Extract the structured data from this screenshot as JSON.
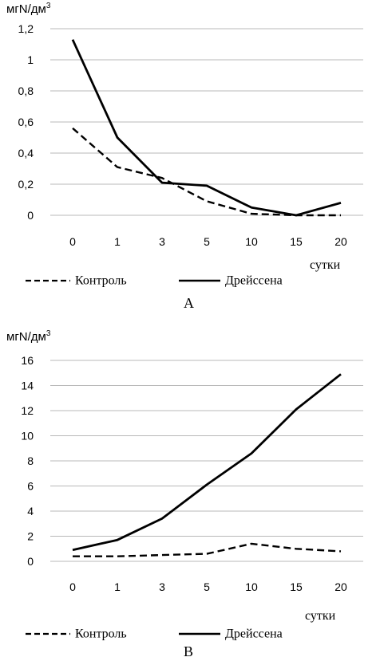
{
  "chart_data": [
    {
      "type": "line",
      "panel_label": "А",
      "ylabel_text": "мгN/дм",
      "ylabel_sup": "3",
      "xlabel": "сутки",
      "categories": [
        "0",
        "1",
        "3",
        "5",
        "10",
        "15",
        "20"
      ],
      "yticks": [
        "0",
        "0,2",
        "0,4",
        "0,6",
        "0,8",
        "1",
        "1,2"
      ],
      "ylim": [
        0,
        1.2
      ],
      "grid": true,
      "legend": "bottom",
      "series": [
        {
          "name": "Контроль",
          "style": "dashed",
          "color": "#000000",
          "values": [
            0.56,
            0.31,
            0.24,
            0.09,
            0.01,
            0.0,
            0.0
          ]
        },
        {
          "name": "Дрейссена",
          "style": "solid",
          "color": "#000000",
          "values": [
            1.13,
            0.5,
            0.21,
            0.19,
            0.05,
            0.0,
            0.08
          ]
        }
      ]
    },
    {
      "type": "line",
      "panel_label": "В",
      "ylabel_text": "мгN/дм",
      "ylabel_sup": "3",
      "xlabel": "сутки",
      "categories": [
        "0",
        "1",
        "3",
        "5",
        "10",
        "15",
        "20"
      ],
      "yticks": [
        "0",
        "2",
        "4",
        "6",
        "8",
        "10",
        "12",
        "14",
        "16"
      ],
      "ylim": [
        0,
        16
      ],
      "grid": true,
      "legend": "bottom",
      "series": [
        {
          "name": "Контроль",
          "style": "dashed",
          "color": "#000000",
          "values": [
            0.4,
            0.4,
            0.5,
            0.6,
            1.4,
            1.0,
            0.8
          ]
        },
        {
          "name": "Дрейссена",
          "style": "solid",
          "color": "#000000",
          "values": [
            0.9,
            1.7,
            3.4,
            6.1,
            8.6,
            12.1,
            14.9
          ]
        }
      ]
    }
  ]
}
